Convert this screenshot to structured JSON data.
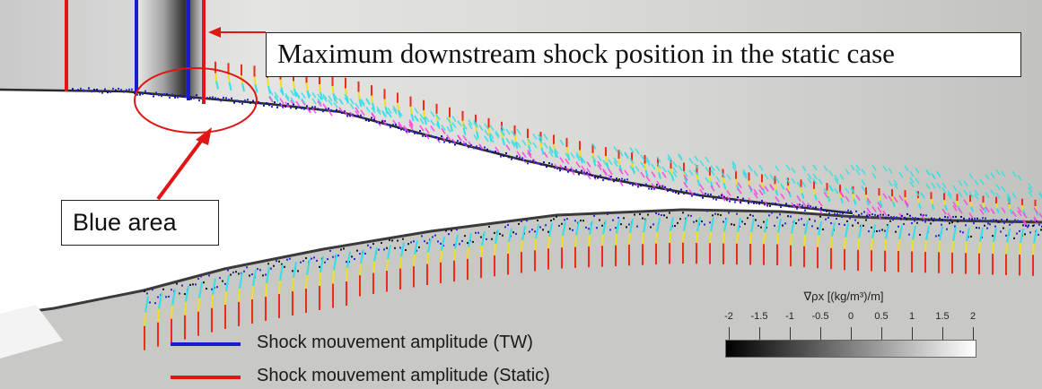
{
  "callouts": {
    "shock_position": "Maximum downstream shock position in the static case",
    "blue_area": "Blue area"
  },
  "legend": [
    {
      "label": "Shock mouvement amplitude (TW)",
      "color": "#1a1ad0"
    },
    {
      "label": "Shock mouvement amplitude (Static)",
      "color": "#e01515"
    }
  ],
  "colorbar": {
    "title": "∇ρx [(kg/m³)/m]",
    "ticks": [
      "-2",
      "-1.5",
      "-1",
      "-0.5",
      "0",
      "0.5",
      "1",
      "1.5",
      "2"
    ],
    "range": [
      -2,
      2
    ],
    "colormap": "black-to-white"
  },
  "colors": {
    "tw_line": "#1a1ad0",
    "static_line": "#e01515",
    "annotation_arrow": "#e01515",
    "velocity_magenta": "#ff3fe0",
    "velocity_cyan": "#30e0e8",
    "velocity_yellow": "#f0e020",
    "velocity_red": "#ee2a1a"
  }
}
